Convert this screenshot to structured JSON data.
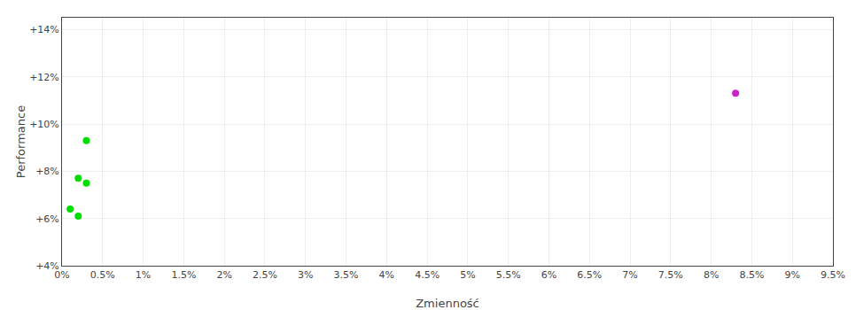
{
  "chart_data": {
    "type": "scatter",
    "xlabel": "Zmienność",
    "ylabel": "Performance",
    "xlim": [
      0.0,
      0.095
    ],
    "ylim": [
      0.04,
      0.145
    ],
    "xticks": [
      {
        "value": 0.0,
        "label": "0%"
      },
      {
        "value": 0.005,
        "label": "0.5%"
      },
      {
        "value": 0.01,
        "label": "1%"
      },
      {
        "value": 0.015,
        "label": "1.5%"
      },
      {
        "value": 0.02,
        "label": "2%"
      },
      {
        "value": 0.025,
        "label": "2.5%"
      },
      {
        "value": 0.03,
        "label": "3%"
      },
      {
        "value": 0.035,
        "label": "3.5%"
      },
      {
        "value": 0.04,
        "label": "4%"
      },
      {
        "value": 0.045,
        "label": "4.5%"
      },
      {
        "value": 0.05,
        "label": "5%"
      },
      {
        "value": 0.055,
        "label": "5.5%"
      },
      {
        "value": 0.06,
        "label": "6%"
      },
      {
        "value": 0.065,
        "label": "6.5%"
      },
      {
        "value": 0.07,
        "label": "7%"
      },
      {
        "value": 0.075,
        "label": "7.5%"
      },
      {
        "value": 0.08,
        "label": "8%"
      },
      {
        "value": 0.085,
        "label": "8.5%"
      },
      {
        "value": 0.09,
        "label": "9%"
      },
      {
        "value": 0.095,
        "label": "9.5%"
      }
    ],
    "yticks": [
      {
        "value": 0.04,
        "label": "+4%"
      },
      {
        "value": 0.06,
        "label": "+6%"
      },
      {
        "value": 0.08,
        "label": "+8%"
      },
      {
        "value": 0.1,
        "label": "+10%"
      },
      {
        "value": 0.12,
        "label": "+12%"
      },
      {
        "value": 0.14,
        "label": "+14%"
      }
    ],
    "grid": true,
    "marker": "circle",
    "series": [
      {
        "color": "#00dd00",
        "x": [
          0.003,
          0.002,
          0.003,
          0.001,
          0.002
        ],
        "values": [
          0.093,
          0.077,
          0.075,
          0.064,
          0.061
        ]
      },
      {
        "color": "#cc22cc",
        "x": [
          0.083
        ],
        "values": [
          0.113
        ]
      }
    ]
  }
}
